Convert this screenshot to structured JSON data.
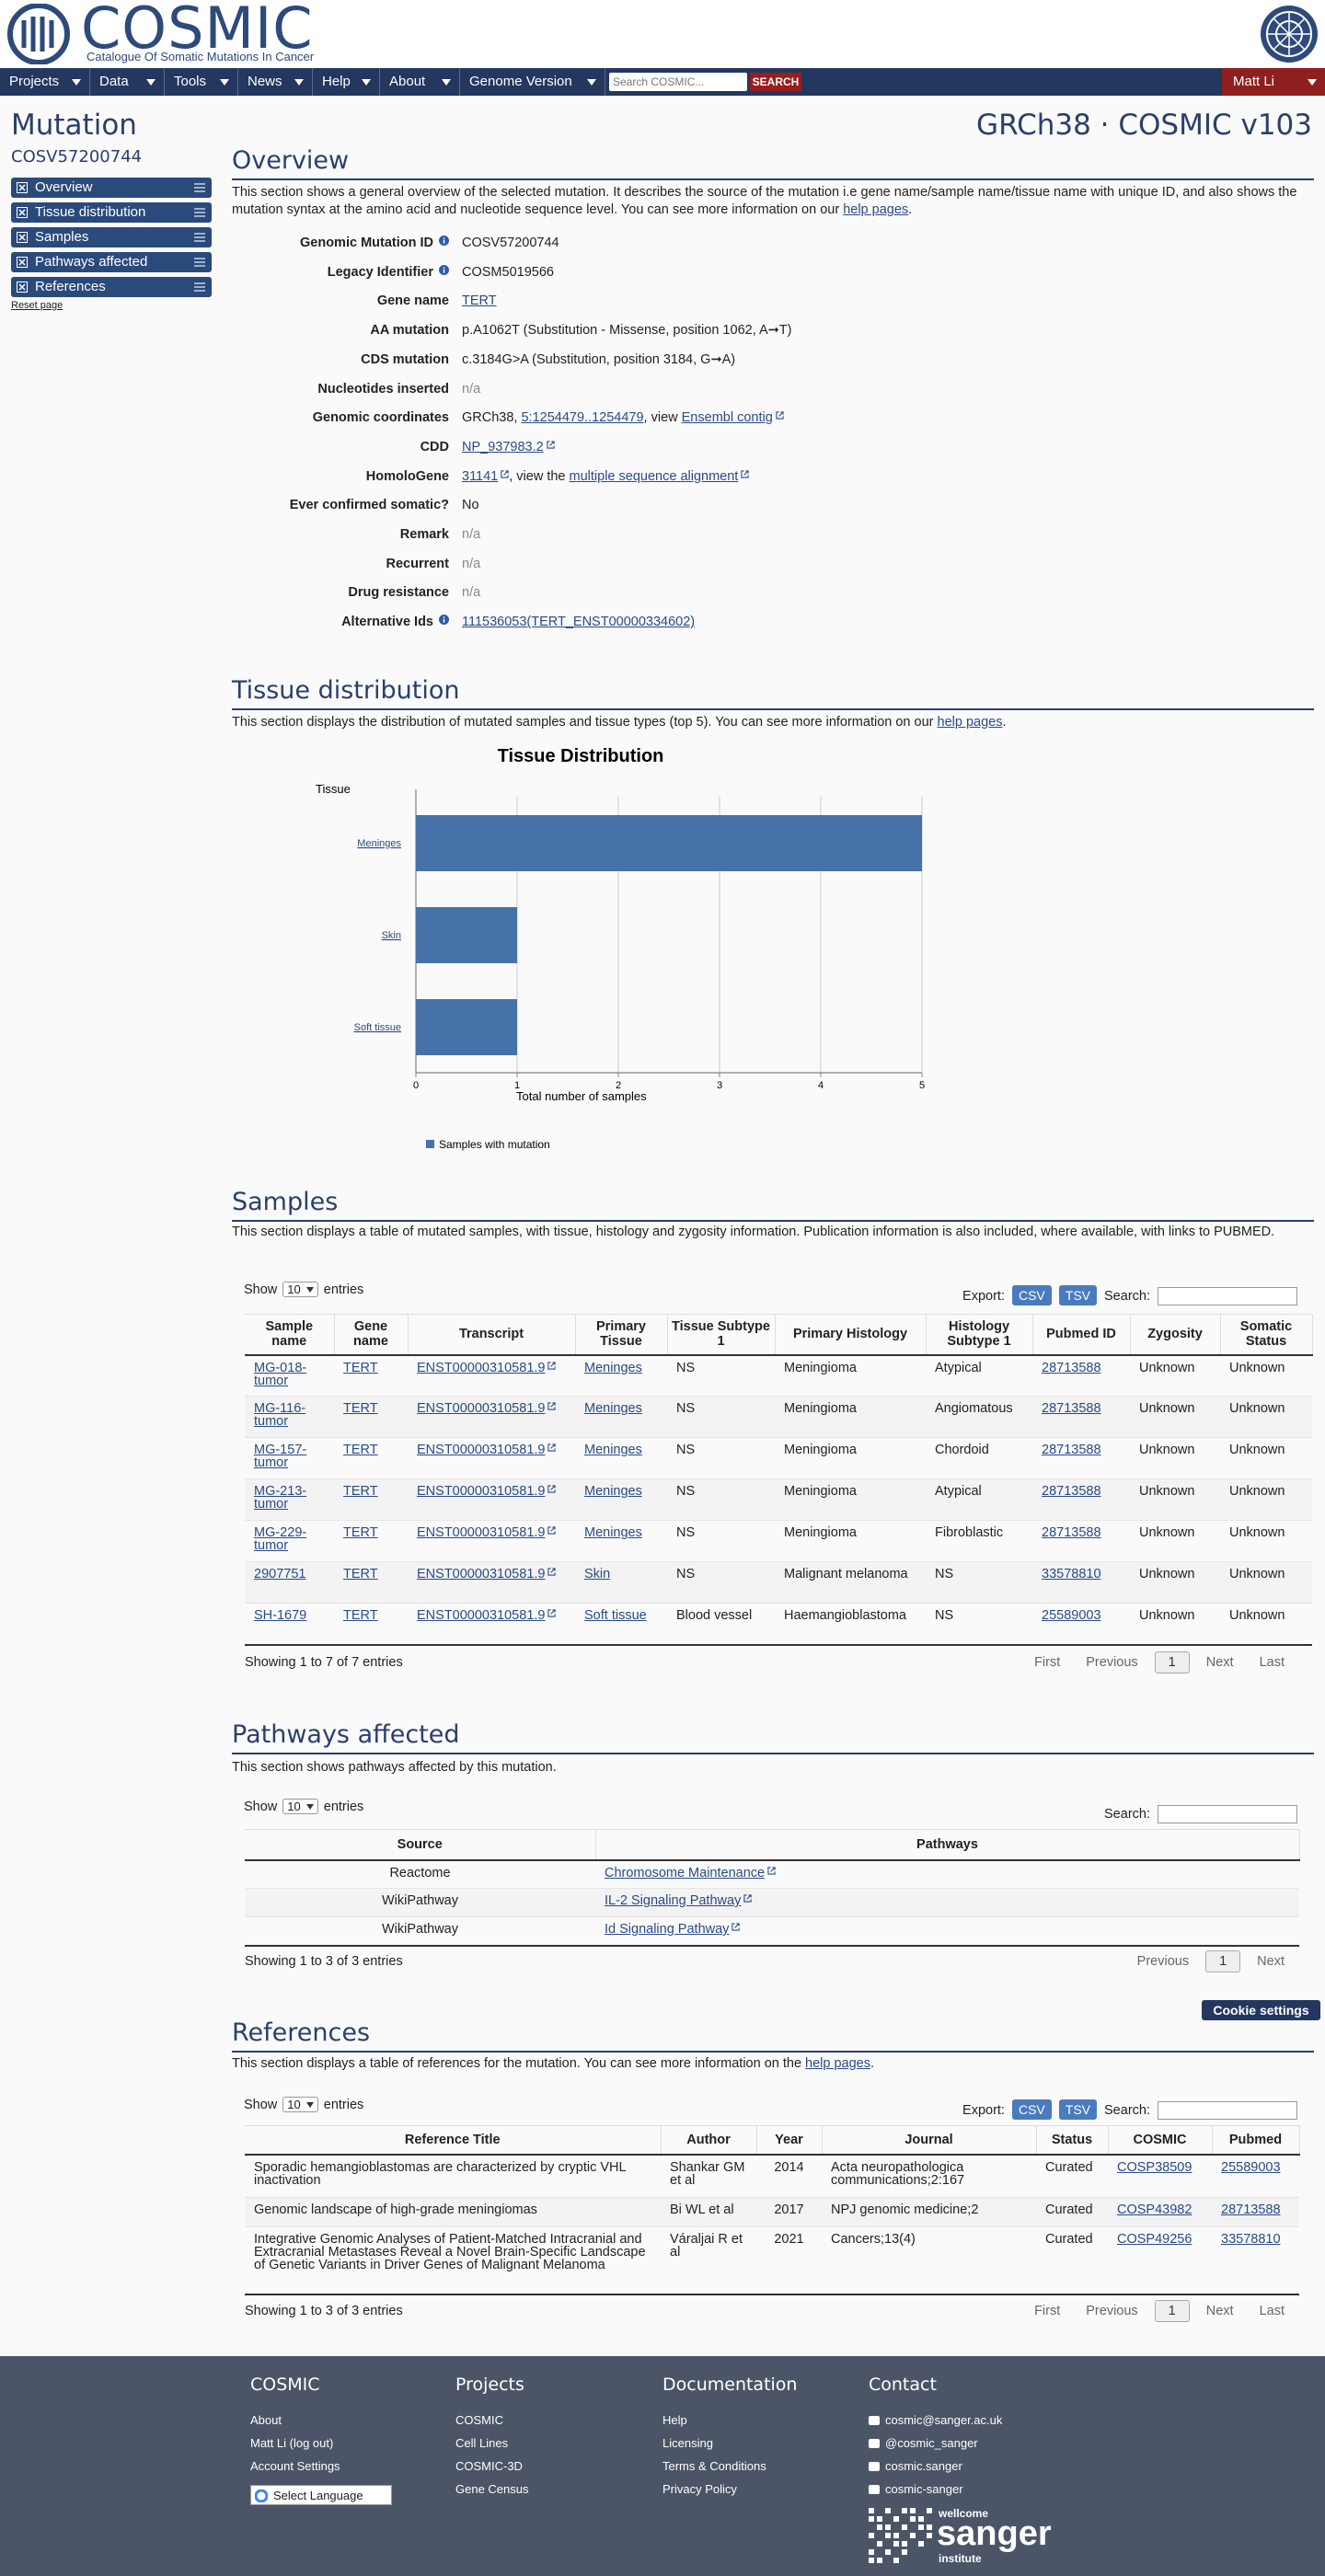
{
  "header": {
    "logo": "COSMIC",
    "tagline": "Catalogue Of Somatic Mutations In Cancer"
  },
  "nav": {
    "items": [
      "Projects",
      "Data",
      "Tools",
      "News",
      "Help",
      "About",
      "Genome Version"
    ],
    "search_placeholder": "Search COSMIC...",
    "search_button": "SEARCH",
    "user": "Matt Li"
  },
  "sidebar": {
    "title": "Mutation",
    "id": "COSV57200744",
    "links": [
      "Overview",
      "Tissue distribution",
      "Samples",
      "Pathways affected",
      "References"
    ],
    "reset": "Reset page"
  },
  "version": "GRCh38 · COSMIC v103",
  "overview": {
    "heading": "Overview",
    "intro": [
      {
        "text": "This section shows a general overview of the selected mutation. It describes the source of the mutation i.e gene name/sample name/tissue name with unique ID, and also shows the mutation syntax at the amino acid and nucleotide sequence level. You can see more information on our "
      },
      {
        "link": "help pages"
      },
      {
        "text": "."
      }
    ],
    "fields": [
      {
        "label": "Genomic Mutation ID",
        "info": true,
        "value": [
          {
            "text": "COSV57200744"
          }
        ]
      },
      {
        "label": "Legacy Identifier",
        "info": true,
        "value": [
          {
            "text": "COSM5019566"
          }
        ]
      },
      {
        "label": "Gene name",
        "value": [
          {
            "link": "TERT"
          }
        ]
      },
      {
        "label": "AA mutation",
        "value": [
          {
            "text": "p.A1062T (Substitution - Missense, position 1062, A➞T)"
          }
        ]
      },
      {
        "label": "CDS mutation",
        "value": [
          {
            "text": "c.3184G>A (Substitution, position 3184, G➞A)"
          }
        ]
      },
      {
        "label": "Nucleotides inserted",
        "value": [
          {
            "text": "n/a",
            "muted": true
          }
        ]
      },
      {
        "label": "Genomic coordinates",
        "value": [
          {
            "text": "GRCh38, "
          },
          {
            "link": "5:1254479..1254479"
          },
          {
            "text": ", view "
          },
          {
            "link": "Ensembl contig",
            "ext": true
          }
        ]
      },
      {
        "label": "CDD",
        "value": [
          {
            "link": "NP_937983.2",
            "ext": true
          }
        ]
      },
      {
        "label": "HomoloGene",
        "value": [
          {
            "link": "31141",
            "ext": true
          },
          {
            "text": ", view the "
          },
          {
            "link": "multiple sequence alignment",
            "ext": true
          }
        ]
      },
      {
        "label": "Ever confirmed somatic?",
        "value": [
          {
            "text": "No"
          }
        ]
      },
      {
        "label": "Remark",
        "value": [
          {
            "text": "n/a",
            "muted": true
          }
        ]
      },
      {
        "label": "Recurrent",
        "value": [
          {
            "text": "n/a",
            "muted": true
          }
        ]
      },
      {
        "label": "Drug resistance",
        "value": [
          {
            "text": "n/a",
            "muted": true
          }
        ]
      },
      {
        "label": "Alternative Ids",
        "info": true,
        "value": [
          {
            "link": "111536053(TERT_ENST00000334602)"
          }
        ]
      }
    ]
  },
  "tissue_distribution": {
    "heading": "Tissue distribution",
    "intro": [
      {
        "text": "This section displays the distribution of mutated samples and tissue types (top 5). You can see more information on our "
      },
      {
        "link": "help pages"
      },
      {
        "text": "."
      }
    ],
    "chart": {
      "type": "bar",
      "orientation": "horizontal",
      "title": "Tissue Distribution",
      "y_label": "Tissue",
      "x_label": "Total number of samples",
      "categories": [
        "Meninges",
        "Skin",
        "Soft tissue"
      ],
      "series": [
        {
          "name": "Samples with mutation",
          "color": "#4672a8",
          "values": [
            5,
            1,
            1
          ]
        }
      ],
      "xlim": [
        0,
        5
      ],
      "xticks": [
        0,
        1,
        2,
        3,
        4,
        5
      ],
      "grid": true
    }
  },
  "samples": {
    "heading": "Samples",
    "intro": [
      {
        "text": "This section displays a table of mutated samples, with tissue, histology and zygosity information. Publication information is also included, where available, with links to PUBMED."
      }
    ],
    "controls": {
      "show": "Show",
      "length": "10",
      "entries": "entries",
      "export": "Export:",
      "csv": "CSV",
      "tsv": "TSV",
      "search": "Search:"
    },
    "columns": [
      "Sample name",
      "Gene name",
      "Transcript",
      "Primary Tissue",
      "Tissue Subtype 1",
      "Primary Histology",
      "Histology Subtype 1",
      "Pubmed ID",
      "Zygosity",
      "Somatic Status"
    ],
    "rows": [
      [
        "MG-018-tumor",
        "TERT",
        "ENST00000310581.9",
        "Meninges",
        "NS",
        "Meningioma",
        "Atypical",
        "28713588",
        "Unknown",
        "Unknown"
      ],
      [
        "MG-116-tumor",
        "TERT",
        "ENST00000310581.9",
        "Meninges",
        "NS",
        "Meningioma",
        "Angiomatous",
        "28713588",
        "Unknown",
        "Unknown"
      ],
      [
        "MG-157-tumor",
        "TERT",
        "ENST00000310581.9",
        "Meninges",
        "NS",
        "Meningioma",
        "Chordoid",
        "28713588",
        "Unknown",
        "Unknown"
      ],
      [
        "MG-213-tumor",
        "TERT",
        "ENST00000310581.9",
        "Meninges",
        "NS",
        "Meningioma",
        "Atypical",
        "28713588",
        "Unknown",
        "Unknown"
      ],
      [
        "MG-229-tumor",
        "TERT",
        "ENST00000310581.9",
        "Meninges",
        "NS",
        "Meningioma",
        "Fibroblastic",
        "28713588",
        "Unknown",
        "Unknown"
      ],
      [
        "2907751",
        "TERT",
        "ENST00000310581.9",
        "Skin",
        "NS",
        "Malignant melanoma",
        "NS",
        "33578810",
        "Unknown",
        "Unknown"
      ],
      [
        "SH-1679",
        "TERT",
        "ENST00000310581.9",
        "Soft tissue",
        "Blood vessel",
        "Haemangioblastoma",
        "NS",
        "25589003",
        "Unknown",
        "Unknown"
      ]
    ],
    "info": "Showing 1 to 7 of 7 entries",
    "pager": {
      "first": "First",
      "previous": "Previous",
      "current": "1",
      "next": "Next",
      "last": "Last"
    }
  },
  "pathways": {
    "heading": "Pathways affected",
    "intro": [
      {
        "text": "This section shows pathways affected by this mutation."
      }
    ],
    "controls": {
      "show": "Show",
      "length": "10",
      "entries": "entries",
      "search": "Search:"
    },
    "columns": [
      "Source",
      "Pathways"
    ],
    "rows": [
      [
        "Reactome",
        "Chromosome Maintenance"
      ],
      [
        "WikiPathway",
        "IL-2 Signaling Pathway"
      ],
      [
        "WikiPathway",
        "Id Signaling Pathway"
      ]
    ],
    "info": "Showing 1 to 3 of 3 entries",
    "pager": {
      "previous": "Previous",
      "current": "1",
      "next": "Next"
    }
  },
  "cookie_button": "Cookie settings",
  "references": {
    "heading": "References",
    "intro": [
      {
        "text": "This section displays a table of references for the mutation. You can see more information on the "
      },
      {
        "link": "help pages"
      },
      {
        "text": "."
      }
    ],
    "controls": {
      "show": "Show",
      "length": "10",
      "entries": "entries",
      "export": "Export:",
      "csv": "CSV",
      "tsv": "TSV",
      "search": "Search:"
    },
    "columns": [
      "Reference Title",
      "Author",
      "Year",
      "Journal",
      "Status",
      "COSMIC",
      "Pubmed"
    ],
    "rows": [
      [
        "Sporadic hemangioblastomas are characterized by cryptic VHL inactivation",
        "Shankar GM et al",
        "2014",
        "Acta neuropathologica communications;2:167",
        "Curated",
        "COSP38509",
        "25589003"
      ],
      [
        "Genomic landscape of high-grade meningiomas",
        "Bi WL et al",
        "2017",
        "NPJ genomic medicine;2",
        "Curated",
        "COSP43982",
        "28713588"
      ],
      [
        "Integrative Genomic Analyses of Patient-Matched Intracranial and Extracranial Metastases Reveal a Novel Brain-Specific Landscape of Genetic Variants in Driver Genes of Malignant Melanoma",
        "Váraljai R et al",
        "2021",
        "Cancers;13(4)",
        "Curated",
        "COSP49256",
        "33578810"
      ]
    ],
    "info": "Showing 1 to 3 of 3 entries",
    "pager": {
      "first": "First",
      "previous": "Previous",
      "current": "1",
      "next": "Next",
      "last": "Last"
    }
  },
  "footer": {
    "columns": [
      {
        "heading": "COSMIC",
        "links": [
          "About",
          "Matt Li (log out)",
          "Account Settings"
        ]
      },
      {
        "heading": "Projects",
        "links": [
          "COSMIC",
          "Cell Lines",
          "COSMIC-3D",
          "Gene Census"
        ]
      },
      {
        "heading": "Documentation",
        "links": [
          "Help",
          "Licensing",
          "Terms & Conditions",
          "Privacy Policy"
        ]
      },
      {
        "heading": "Contact",
        "links": [
          "cosmic@sanger.ac.uk",
          "@cosmic_sanger",
          "cosmic.sanger",
          "cosmic-sanger"
        ]
      }
    ],
    "language": "Select Language",
    "logo": [
      "wellcome",
      "sanger",
      "institute"
    ]
  }
}
